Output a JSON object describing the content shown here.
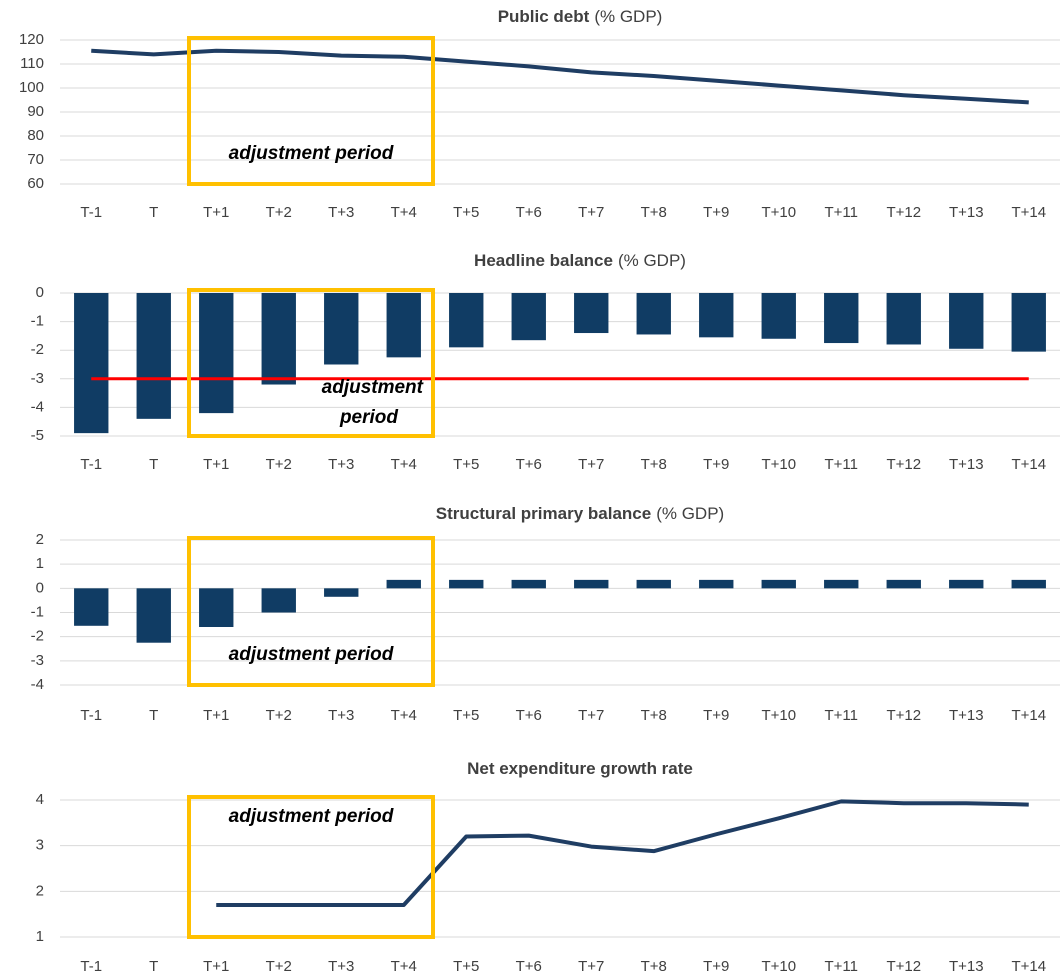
{
  "chart_data": [
    {
      "type": "line",
      "title": "Public debt",
      "title_unit": "(% GDP)",
      "categories": [
        "T-1",
        "T",
        "T+1",
        "T+2",
        "T+3",
        "T+4",
        "T+5",
        "T+6",
        "T+7",
        "T+8",
        "T+9",
        "T+10",
        "T+11",
        "T+12",
        "T+13",
        "T+14"
      ],
      "values": [
        115.5,
        114,
        115.5,
        115,
        113.5,
        113,
        111,
        109,
        106.5,
        105,
        103,
        101,
        99,
        97,
        95.5,
        94
      ],
      "color": "#1f3d63",
      "ylim": [
        60,
        120
      ],
      "yticks": [
        60,
        70,
        80,
        90,
        100,
        110,
        120
      ],
      "grid": true,
      "highlight": {
        "from": "T+1",
        "to": "T+4",
        "label": "adjustment period"
      }
    },
    {
      "type": "bar",
      "title": "Headline balance",
      "title_unit": "(% GDP)",
      "categories": [
        "T-1",
        "T",
        "T+1",
        "T+2",
        "T+3",
        "T+4",
        "T+5",
        "T+6",
        "T+7",
        "T+8",
        "T+9",
        "T+10",
        "T+11",
        "T+12",
        "T+13",
        "T+14"
      ],
      "values": [
        -4.9,
        -4.4,
        -4.2,
        -3.2,
        -2.5,
        -2.25,
        -1.9,
        -1.65,
        -1.4,
        -1.45,
        -1.55,
        -1.6,
        -1.75,
        -1.8,
        -1.95,
        -2.05
      ],
      "color": "#103c64",
      "ylim": [
        -5,
        0
      ],
      "yticks": [
        0,
        -1,
        -2,
        -3,
        -4,
        -5
      ],
      "grid": true,
      "reference_line": {
        "value": -3,
        "color": "#ff0000"
      },
      "highlight": {
        "from": "T+1",
        "to": "T+4",
        "label": "adjustment period"
      }
    },
    {
      "type": "bar",
      "title": "Structural primary balance",
      "title_unit": "(% GDP)",
      "categories": [
        "T-1",
        "T",
        "T+1",
        "T+2",
        "T+3",
        "T+4",
        "T+5",
        "T+6",
        "T+7",
        "T+8",
        "T+9",
        "T+10",
        "T+11",
        "T+12",
        "T+13",
        "T+14"
      ],
      "values": [
        -1.55,
        -2.25,
        -1.6,
        -1.0,
        -0.35,
        0.35,
        0.35,
        0.35,
        0.35,
        0.35,
        0.35,
        0.35,
        0.35,
        0.35,
        0.35,
        0.35
      ],
      "color": "#103c64",
      "ylim": [
        -4,
        2
      ],
      "yticks": [
        2,
        1,
        0,
        -1,
        -2,
        -3,
        -4
      ],
      "grid": true,
      "highlight": {
        "from": "T+1",
        "to": "T+4",
        "label": "adjustment period"
      }
    },
    {
      "type": "line",
      "title": "Net expenditure growth rate",
      "categories": [
        "T-1",
        "T",
        "T+1",
        "T+2",
        "T+3",
        "T+4",
        "T+5",
        "T+6",
        "T+7",
        "T+8",
        "T+9",
        "T+10",
        "T+11",
        "T+12",
        "T+13",
        "T+14"
      ],
      "values": [
        null,
        null,
        1.7,
        1.7,
        1.7,
        1.7,
        3.2,
        3.22,
        2.98,
        2.88,
        3.25,
        3.6,
        3.97,
        3.93,
        3.93,
        3.9
      ],
      "color": "#1f3d63",
      "ylim": [
        1,
        4
      ],
      "yticks": [
        1,
        2,
        3,
        4
      ],
      "grid": true,
      "highlight": {
        "from": "T+1",
        "to": "T+4",
        "label": "adjustment period"
      }
    }
  ]
}
